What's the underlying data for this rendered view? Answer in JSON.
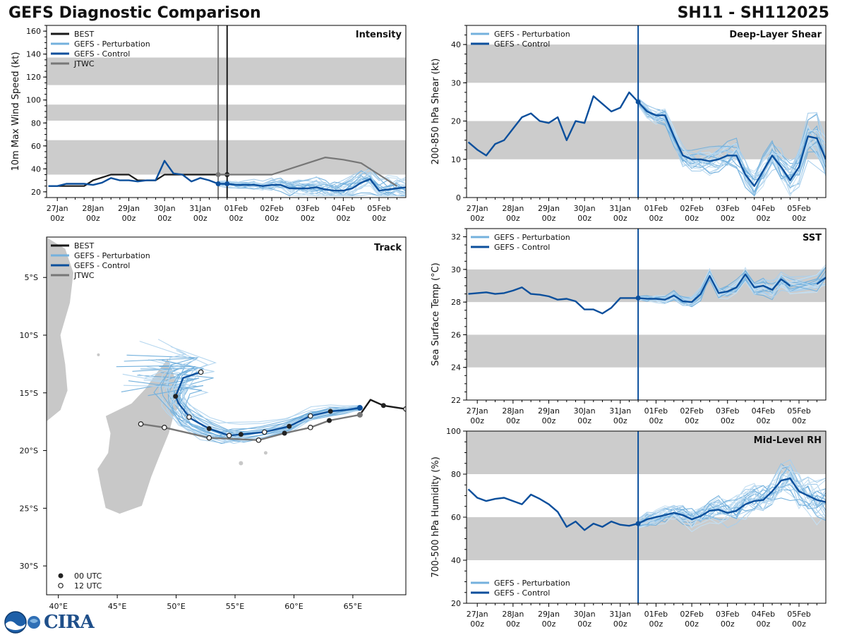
{
  "header": {
    "title_left": "GEFS Diagnostic Comparison",
    "title_right": "SH11 - SH112025"
  },
  "logo": {
    "noaa": "NOAA",
    "cira": "CIRA"
  },
  "colors": {
    "best": "#1a1a1a",
    "perturbation": "#74b1dd",
    "control": "#0b4f9c",
    "jtwc": "#777777",
    "band": "#cccccc",
    "land": "#c8c8c8"
  },
  "time_axis": {
    "ticks": [
      "27Jan\n00z",
      "28Jan\n00z",
      "29Jan\n00z",
      "30Jan\n00z",
      "31Jan\n00z",
      "01Feb\n00z",
      "02Feb\n00z",
      "03Feb\n00z",
      "04Feb\n00z",
      "05Feb\n00z"
    ],
    "labels_top": [
      "27Jan",
      "28Jan",
      "29Jan",
      "30Jan",
      "31Jan",
      "01Feb",
      "02Feb",
      "03Feb",
      "04Feb",
      "05Feb"
    ],
    "labels_bottom": [
      "00z",
      "00z",
      "00z",
      "00z",
      "00z",
      "00z",
      "00z",
      "00z",
      "00z",
      "00z"
    ]
  },
  "legend": {
    "best": "BEST",
    "perturbation": "GEFS - Perturbation",
    "control": "GEFS - Control",
    "jtwc": "JTWC",
    "utc00": "00 UTC",
    "utc12": "12 UTC"
  },
  "chart_data": [
    {
      "id": "intensity",
      "type": "line",
      "title": "Intensity",
      "ylabel": "10m Max Wind Speed (kt)",
      "x_unit": "days since 27Jan 00z",
      "xlim": [
        -0.3,
        9.75
      ],
      "ylim": [
        15,
        165
      ],
      "yticks": [
        20,
        40,
        60,
        80,
        100,
        120,
        140,
        160
      ],
      "bands": [
        [
          35,
          65
        ],
        [
          82,
          96
        ],
        [
          113,
          137
        ]
      ],
      "vlines": [
        {
          "x": 4.5,
          "color": "jtwc"
        },
        {
          "x": 4.75,
          "color": "best"
        }
      ],
      "series": [
        {
          "name": "BEST",
          "x": [
            -0.25,
            0.75,
            1.0,
            1.5,
            2.0,
            2.25,
            2.75,
            3.0,
            3.5,
            4.0,
            4.75
          ],
          "y": [
            25,
            25,
            30,
            35,
            35,
            30,
            30,
            35,
            35,
            35,
            35
          ]
        },
        {
          "name": "GEFS - Control",
          "x": [
            -0.25,
            0,
            0.25,
            0.75,
            1.0,
            1.25,
            1.5,
            1.75,
            2.0,
            2.25,
            2.5,
            2.75,
            3.0,
            3.25,
            3.5,
            3.75,
            4.0,
            4.25,
            4.5,
            4.75,
            5.0,
            5.25,
            5.5,
            5.75,
            6.0,
            6.25,
            6.5,
            6.75,
            7.0,
            7.25,
            7.5,
            7.75,
            8.0,
            8.25,
            8.5,
            8.75,
            9.0,
            9.25,
            9.5,
            9.75
          ],
          "y": [
            25,
            25,
            27,
            27,
            26,
            28,
            32,
            30,
            30,
            29,
            30,
            30,
            47,
            36,
            35,
            29,
            32,
            30,
            27,
            27,
            26,
            26,
            26,
            25,
            26,
            26,
            23,
            23,
            23,
            24,
            22,
            21,
            21,
            23,
            28,
            31,
            21,
            22,
            23,
            24
          ]
        },
        {
          "name": "JTWC",
          "x": [
            4.5,
            5.0,
            6.0,
            7.0,
            7.5,
            8.0,
            8.5,
            9.0,
            9.5
          ],
          "y": [
            35,
            35,
            35,
            45,
            50,
            48,
            45,
            35,
            25
          ]
        }
      ]
    },
    {
      "id": "shear",
      "type": "line",
      "title": "Deep-Layer Shear",
      "ylabel": "200-850 hPa Shear (kt)",
      "x_unit": "days since 27Jan 00z",
      "xlim": [
        -0.3,
        9.75
      ],
      "ylim": [
        0,
        45
      ],
      "yticks": [
        0,
        10,
        20,
        30,
        40
      ],
      "bands": [
        [
          10,
          20
        ],
        [
          30,
          40
        ]
      ],
      "vlines": [
        {
          "x": 4.5,
          "color": "control"
        }
      ],
      "series": [
        {
          "name": "GEFS - Control",
          "x": [
            -0.25,
            0,
            0.25,
            0.5,
            0.75,
            1.0,
            1.25,
            1.5,
            1.75,
            2.0,
            2.25,
            2.5,
            2.75,
            3.0,
            3.25,
            3.5,
            3.75,
            4.0,
            4.25,
            4.5,
            4.75,
            5.0,
            5.25,
            5.5,
            5.75,
            6.0,
            6.25,
            6.5,
            6.75,
            7.0,
            7.25,
            7.5,
            7.75,
            8.0,
            8.25,
            8.5,
            8.75,
            9.0,
            9.25,
            9.5,
            9.75
          ],
          "y": [
            14.5,
            12.5,
            11,
            14,
            15,
            18,
            21,
            22,
            20,
            19.5,
            21,
            15,
            20,
            19.5,
            26.5,
            24.5,
            22.5,
            23.5,
            27.5,
            25,
            22.5,
            21.5,
            21.5,
            16,
            11,
            10,
            10,
            9.5,
            10,
            11,
            11,
            6,
            3,
            7,
            11,
            8,
            4.5,
            8,
            16,
            15.5,
            10
          ]
        }
      ]
    },
    {
      "id": "sst",
      "type": "line",
      "title": "SST",
      "ylabel": "Sea Surface Temp (°C)",
      "x_unit": "days since 27Jan 00z",
      "xlim": [
        -0.3,
        9.75
      ],
      "ylim": [
        22,
        32.5
      ],
      "yticks": [
        22,
        24,
        26,
        28,
        30,
        32
      ],
      "bands": [
        [
          24,
          26
        ],
        [
          28,
          30
        ]
      ],
      "vlines": [
        {
          "x": 4.5,
          "color": "control"
        }
      ],
      "series": [
        {
          "name": "GEFS - Control",
          "x": [
            -0.25,
            0.25,
            0.5,
            0.75,
            1.0,
            1.25,
            1.5,
            1.75,
            2.0,
            2.25,
            2.5,
            2.75,
            3.0,
            3.25,
            3.5,
            3.75,
            4.0,
            4.25,
            4.5,
            4.75,
            5.0,
            5.25,
            5.5,
            5.75,
            6.0,
            6.25,
            6.5,
            6.75,
            7.0,
            7.25,
            7.5,
            7.75,
            8.0,
            8.25,
            8.5,
            8.75,
            9.0,
            9.5,
            9.75
          ],
          "y": [
            28.5,
            28.6,
            28.5,
            28.55,
            28.7,
            28.9,
            28.5,
            28.45,
            28.35,
            28.15,
            28.2,
            28.05,
            27.55,
            27.55,
            27.3,
            27.65,
            28.25,
            28.25,
            28.25,
            28.2,
            28.2,
            28.15,
            28.4,
            28.05,
            28.0,
            28.5,
            29.6,
            28.55,
            28.65,
            28.9,
            29.7,
            28.9,
            29.0,
            28.75,
            29.4,
            29.0,
            null,
            29.1,
            29.5
          ]
        }
      ]
    },
    {
      "id": "rh",
      "type": "line",
      "title": "Mid-Level RH",
      "ylabel": "700-500 hPa Humidity (%)",
      "x_unit": "days since 27Jan 00z",
      "xlim": [
        -0.3,
        9.75
      ],
      "ylim": [
        20,
        100
      ],
      "yticks": [
        20,
        40,
        60,
        80,
        100
      ],
      "bands": [
        [
          40,
          60
        ],
        [
          80,
          100
        ]
      ],
      "vlines": [
        {
          "x": 4.5,
          "color": "control"
        }
      ],
      "series": [
        {
          "name": "GEFS - Control",
          "x": [
            -0.25,
            0,
            0.25,
            0.5,
            0.75,
            1.0,
            1.25,
            1.5,
            1.75,
            2.0,
            2.25,
            2.5,
            2.75,
            3.0,
            3.25,
            3.5,
            3.75,
            4.0,
            4.25,
            4.5,
            4.75,
            5.0,
            5.25,
            5.5,
            5.75,
            6.0,
            6.25,
            6.5,
            6.75,
            7.0,
            7.25,
            7.5,
            7.75,
            8.0,
            8.25,
            8.5,
            8.75,
            9.0,
            9.25,
            9.5,
            9.75
          ],
          "y": [
            73,
            69,
            67.5,
            68.5,
            69,
            67.5,
            66,
            70.5,
            68.5,
            66,
            62.5,
            55.5,
            58,
            54,
            57,
            55.5,
            58,
            56.5,
            56,
            57,
            59,
            60,
            61,
            62,
            61,
            59,
            60.5,
            63,
            63.5,
            62,
            63,
            66,
            67.5,
            68,
            72,
            77,
            78,
            72,
            70,
            68,
            67
          ]
        }
      ]
    },
    {
      "id": "track",
      "type": "scatter",
      "title": "Track",
      "x_unit": "degrees East longitude",
      "y_unit": "degrees latitude (negative = South)",
      "xlim": [
        39,
        69.5
      ],
      "ylim": [
        -32.5,
        -1.5
      ],
      "xticks": [
        40,
        45,
        50,
        55,
        60,
        65
      ],
      "xticklabels": [
        "40°E",
        "45°E",
        "50°E",
        "55°E",
        "60°E",
        "65°E"
      ],
      "yticks": [
        -5,
        -10,
        -15,
        -20,
        -25,
        -30
      ],
      "yticklabels": [
        "5°S",
        "10°S",
        "15°S",
        "20°S",
        "25°S",
        "30°S"
      ],
      "series": [
        {
          "name": "BEST",
          "lon": [
            69.5,
            67.6,
            66.5,
            65.6
          ],
          "lat": [
            -16.4,
            -16.1,
            -15.6,
            -16.9
          ]
        },
        {
          "name": "GEFS - Control",
          "lon": [
            65.6,
            64.3,
            63.1,
            61.4,
            59.6,
            57.5,
            55.5,
            54.5,
            52.8,
            51.2,
            50.2,
            49.95,
            50.6,
            52.1
          ],
          "lat": [
            -16.3,
            -16.5,
            -16.6,
            -17.0,
            -17.9,
            -18.4,
            -18.6,
            -18.7,
            -18.1,
            -17.2,
            -15.9,
            -15.3,
            -13.7,
            -13.2
          ]
        },
        {
          "name": "JTWC",
          "lon": [
            65.6,
            63.0,
            61.4,
            59.2,
            57.0,
            55.0,
            52.8,
            49.0,
            47.0
          ],
          "lat": [
            -16.9,
            -17.4,
            -18.0,
            -18.5,
            -19.1,
            -19.0,
            -18.9,
            -18.0,
            -17.7
          ]
        },
        {
          "name": "00 UTC",
          "lon": [
            49.95,
            52.8,
            55.5,
            59.6,
            63.1,
            59.2,
            63.0,
            67.6
          ],
          "lat": [
            -15.3,
            -18.1,
            -18.6,
            -17.9,
            -16.6,
            -18.5,
            -17.4,
            -16.1
          ]
        },
        {
          "name": "12 UTC",
          "lon": [
            52.1,
            51.1,
            54.5,
            57.5,
            61.4,
            57.0,
            52.8,
            49.0,
            47.0,
            61.4,
            69.5
          ],
          "lat": [
            -13.2,
            -17.1,
            -18.7,
            -18.4,
            -17.0,
            -19.1,
            -18.9,
            -18.0,
            -17.7,
            -18.0,
            -16.4
          ]
        }
      ]
    }
  ]
}
